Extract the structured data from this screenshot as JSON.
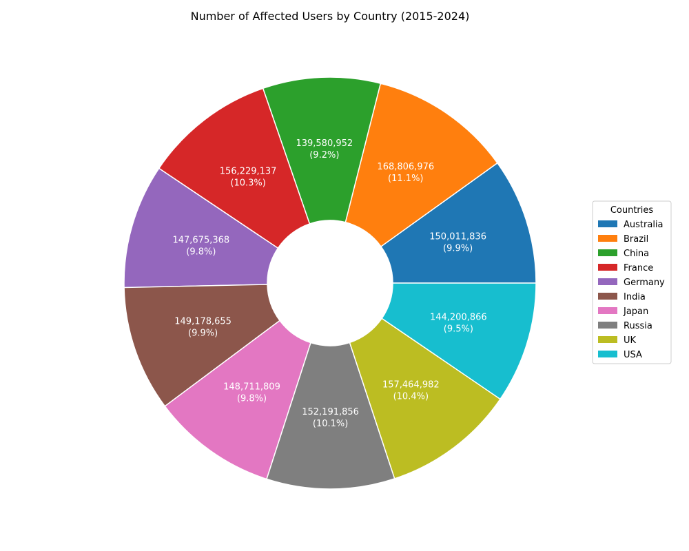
{
  "chart_data": {
    "type": "pie",
    "style": "donut",
    "title": "Number of Affected Users by Country (2015-2024)",
    "legend_title": "Countries",
    "legend_position": "right",
    "start_angle_deg": 0,
    "direction": "counterclockwise",
    "slices": [
      {
        "label": "Australia",
        "value": 150011836,
        "value_text": "150,011,836",
        "pct_text": "(9.9%)",
        "color": "#1f77b4"
      },
      {
        "label": "Brazil",
        "value": 168806976,
        "value_text": "168,806,976",
        "pct_text": "(11.1%)",
        "color": "#ff7f0e"
      },
      {
        "label": "China",
        "value": 139580952,
        "value_text": "139,580,952",
        "pct_text": "(9.2%)",
        "color": "#2ca02c"
      },
      {
        "label": "France",
        "value": 156229137,
        "value_text": "156,229,137",
        "pct_text": "(10.3%)",
        "color": "#d62728"
      },
      {
        "label": "Germany",
        "value": 147675368,
        "value_text": "147,675,368",
        "pct_text": "(9.8%)",
        "color": "#9467bd"
      },
      {
        "label": "India",
        "value": 149178655,
        "value_text": "149,178,655",
        "pct_text": "(9.9%)",
        "color": "#8c564b"
      },
      {
        "label": "Japan",
        "value": 148711809,
        "value_text": "148,711,809",
        "pct_text": "(9.8%)",
        "color": "#e377c2"
      },
      {
        "label": "Russia",
        "value": 152191856,
        "value_text": "152,191,856",
        "pct_text": "(10.1%)",
        "color": "#7f7f7f"
      },
      {
        "label": "UK",
        "value": 157464982,
        "value_text": "157,464,982",
        "pct_text": "(10.4%)",
        "color": "#bcbd22"
      },
      {
        "label": "USA",
        "value": 144200866,
        "value_text": "144,200,866",
        "pct_text": "(9.5%)",
        "color": "#17becf"
      }
    ]
  }
}
